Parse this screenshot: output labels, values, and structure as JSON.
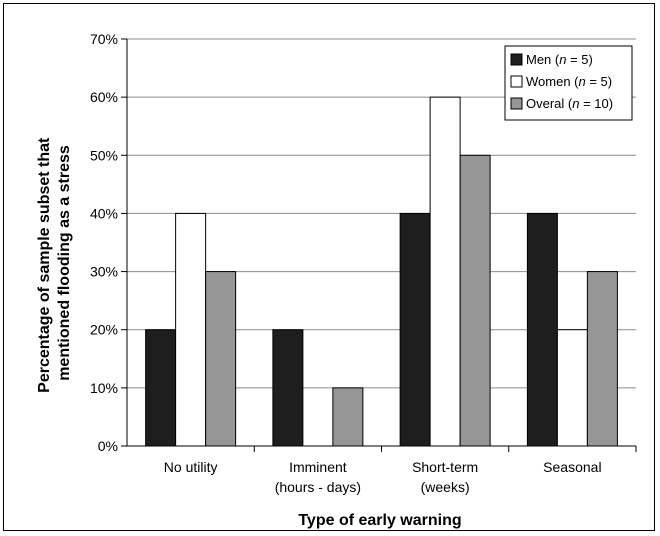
{
  "chart_data": {
    "type": "bar",
    "xlabel": "Type of early warning",
    "ylabel_lines": [
      "Percentage of sample subset that",
      "mentioned flooding as a stress"
    ],
    "ylim": [
      0,
      70
    ],
    "yticks": [
      "0%",
      "10%",
      "20%",
      "30%",
      "40%",
      "50%",
      "60%",
      "70%"
    ],
    "grid": true,
    "legend_position": "top-right",
    "categories": [
      [
        "No utility"
      ],
      [
        "Imminent",
        "(hours - days)"
      ],
      [
        "Short-term",
        "(weeks)"
      ],
      [
        "Seasonal"
      ]
    ],
    "series": [
      {
        "name": "Men",
        "n": "5",
        "color": "#1e1e1e",
        "values": [
          20,
          20,
          40,
          40
        ]
      },
      {
        "name": "Women",
        "n": "5",
        "color": "#ffffff",
        "values": [
          40,
          0,
          60,
          20
        ]
      },
      {
        "name": "Overal",
        "n": "10",
        "color": "#969696",
        "values": [
          30,
          10,
          50,
          30
        ]
      }
    ]
  }
}
